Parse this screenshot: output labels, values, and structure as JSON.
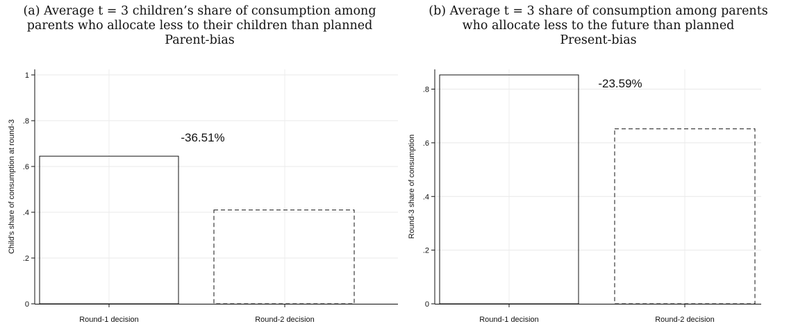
{
  "captions": {
    "a": {
      "line1": "(a) Average t = 3 children’s share of consumption among",
      "line2": "parents who allocate less to their children than planned",
      "line3": "Parent-bias"
    },
    "b": {
      "line1": "(b) Average t = 3 share of consumption among parents",
      "line2": "who allocate less to the future than planned",
      "line3": "Present-bias"
    }
  },
  "chart_data": [
    {
      "type": "bar",
      "categories": [
        "Round-1 decision",
        "Round-2 decision"
      ],
      "values": [
        0.645,
        0.41
      ],
      "bar_styles": [
        "solid",
        "dashed"
      ],
      "ylabel": "Child's share of consumption at round-3",
      "ylim": [
        0,
        1
      ],
      "yticks": [
        0,
        0.2,
        0.4,
        0.6,
        0.8,
        1
      ],
      "ytick_labels": [
        "0",
        ".2",
        ".4",
        ".6",
        ".8",
        "1"
      ],
      "annotation": "-36.51%",
      "grid": true
    },
    {
      "type": "bar",
      "categories": [
        "Round-1 decision",
        "Round-2 decision"
      ],
      "values": [
        0.853,
        0.652
      ],
      "bar_styles": [
        "solid",
        "dashed"
      ],
      "ylabel": "Round-3 share of consumption",
      "ylim": [
        0,
        0.853
      ],
      "yticks": [
        0,
        0.2,
        0.4,
        0.6,
        0.8
      ],
      "ytick_labels": [
        "0",
        ".2",
        ".4",
        ".6",
        ".8"
      ],
      "annotation": "-23.59%",
      "grid": true
    }
  ]
}
